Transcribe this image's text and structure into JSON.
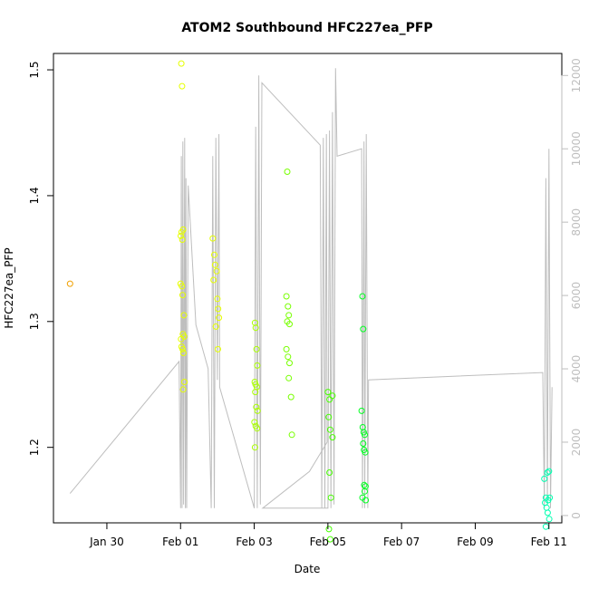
{
  "chart_data": {
    "type": "scatter",
    "title": "ATOM2 Southbound HFC227ea_PFP",
    "xlabel": "Date",
    "ylabel": "HFC227ea_PFP",
    "x_axis": {
      "type": "date",
      "range": [
        "2017-01-28T13:12",
        "2017-02-11T08:24"
      ],
      "ticks": [
        "2017-01-30",
        "2017-02-01",
        "2017-02-03",
        "2017-02-05",
        "2017-02-07",
        "2017-02-09",
        "2017-02-11"
      ],
      "tick_labels": [
        "Jan 30",
        "Feb 01",
        "Feb 03",
        "Feb 05",
        "Feb 07",
        "Feb 09",
        "Feb 11"
      ]
    },
    "y_axis": {
      "range": [
        1.14,
        1.513
      ],
      "ticks": [
        1.2,
        1.3,
        1.4,
        1.5
      ],
      "tick_labels": [
        "1.2",
        "1.3",
        "1.4",
        "1.5"
      ]
    },
    "y2_axis": {
      "color": "#bebebe",
      "range": [
        -200,
        12600
      ],
      "ticks": [
        0,
        2000,
        4000,
        6000,
        8000,
        10000,
        12000
      ],
      "tick_labels": [
        "0",
        "2000",
        "4000",
        "6000",
        "8000",
        "10000",
        "12000"
      ]
    },
    "grid": false,
    "legend": "none",
    "marker": "open-circle",
    "line_series": {
      "color": "#bebebe",
      "points": [
        [
          "2017-01-29T00:00",
          600
        ],
        [
          "2017-01-31T23:00",
          4200
        ],
        [
          "2017-02-01T00:00",
          200
        ],
        [
          "2017-02-01T00:30",
          9800
        ],
        [
          "2017-02-01T01:00",
          200
        ],
        [
          "2017-02-01T01:30",
          10200
        ],
        [
          "2017-02-01T02:00",
          300
        ],
        [
          "2017-02-01T02:40",
          10300
        ],
        [
          "2017-02-01T03:10",
          200
        ],
        [
          "2017-02-01T03:30",
          9200
        ],
        [
          "2017-02-01T04:00",
          200
        ],
        [
          "2017-02-01T05:00",
          9000
        ],
        [
          "2017-02-01T10:00",
          5200
        ],
        [
          "2017-02-01T18:00",
          4000
        ],
        [
          "2017-02-01T20:00",
          200
        ],
        [
          "2017-02-01T21:00",
          9800
        ],
        [
          "2017-02-01T22:00",
          200
        ],
        [
          "2017-02-01T23:00",
          10300
        ],
        [
          "2017-02-02T00:00",
          3700
        ],
        [
          "2017-02-02T01:00",
          10400
        ],
        [
          "2017-02-02T01:30",
          3500
        ],
        [
          "2017-02-03T00:00",
          200
        ],
        [
          "2017-02-03T01:00",
          10600
        ],
        [
          "2017-02-03T02:00",
          200
        ],
        [
          "2017-02-03T03:00",
          12000
        ],
        [
          "2017-02-03T04:00",
          300
        ],
        [
          "2017-02-03T05:00",
          11800
        ],
        [
          "2017-02-04T19:00",
          10100
        ],
        [
          "2017-02-04T20:00",
          200
        ],
        [
          "2017-02-04T21:00",
          10300
        ],
        [
          "2017-02-04T22:00",
          200
        ],
        [
          "2017-02-04T23:00",
          10400
        ],
        [
          "2017-02-04T23:30",
          2000
        ],
        [
          "2017-02-04T12:00",
          1200
        ],
        [
          "2017-02-03T05:30",
          200
        ],
        [
          "2017-02-05T00:00",
          200
        ],
        [
          "2017-02-05T01:00",
          10500
        ],
        [
          "2017-02-05T02:00",
          200
        ],
        [
          "2017-02-05T03:00",
          11000
        ],
        [
          "2017-02-05T04:00",
          300
        ],
        [
          "2017-02-05T05:00",
          12200
        ],
        [
          "2017-02-05T06:00",
          9800
        ],
        [
          "2017-02-05T22:00",
          10000
        ],
        [
          "2017-02-05T22:30",
          200
        ],
        [
          "2017-02-05T23:30",
          10200
        ],
        [
          "2017-02-06T00:00",
          200
        ],
        [
          "2017-02-06T01:00",
          10400
        ],
        [
          "2017-02-06T02:00",
          200
        ],
        [
          "2017-02-06T02:30",
          3700
        ],
        [
          "2017-02-10T20:00",
          3900
        ],
        [
          "2017-02-10T21:00",
          200
        ],
        [
          "2017-02-10T22:00",
          9200
        ],
        [
          "2017-02-10T23:00",
          300
        ],
        [
          "2017-02-11T00:00",
          10000
        ],
        [
          "2017-02-11T01:00",
          200
        ],
        [
          "2017-02-11T02:00",
          3500
        ]
      ]
    },
    "series": [
      {
        "color": "#f0a000",
        "points": [
          [
            "2017-01-29T00:00",
            1.33
          ]
        ]
      },
      {
        "color": "#e6ff00",
        "points": [
          [
            "2017-02-01T00:30",
            1.505
          ],
          [
            "2017-02-01T01:00",
            1.487
          ],
          [
            "2017-02-01T00:10",
            1.368
          ],
          [
            "2017-02-01T00:40",
            1.371
          ],
          [
            "2017-02-01T01:10",
            1.365
          ],
          [
            "2017-02-01T01:40",
            1.373
          ],
          [
            "2017-02-01T00:00",
            1.33
          ],
          [
            "2017-02-01T00:50",
            1.328
          ],
          [
            "2017-02-01T01:20",
            1.321
          ],
          [
            "2017-02-01T02:10",
            1.305
          ],
          [
            "2017-02-01T00:20",
            1.286
          ],
          [
            "2017-02-01T01:30",
            1.29
          ],
          [
            "2017-02-01T02:20",
            1.288
          ],
          [
            "2017-02-01T00:40",
            1.28
          ],
          [
            "2017-02-01T01:20",
            1.278
          ],
          [
            "2017-02-01T01:50",
            1.275
          ],
          [
            "2017-02-01T02:30",
            1.252
          ],
          [
            "2017-02-01T01:40",
            1.246
          ],
          [
            "2017-02-01T21:00",
            1.366
          ],
          [
            "2017-02-01T22:00",
            1.353
          ],
          [
            "2017-02-01T22:30",
            1.345
          ],
          [
            "2017-02-01T23:30",
            1.34
          ],
          [
            "2017-02-01T21:30",
            1.333
          ],
          [
            "2017-02-02T00:00",
            1.318
          ],
          [
            "2017-02-02T00:30",
            1.31
          ],
          [
            "2017-02-02T01:00",
            1.303
          ],
          [
            "2017-02-01T23:00",
            1.296
          ],
          [
            "2017-02-02T00:20",
            1.278
          ]
        ]
      },
      {
        "color": "#aaff00",
        "points": [
          [
            "2017-02-03T00:30",
            1.299
          ],
          [
            "2017-02-03T01:00",
            1.295
          ],
          [
            "2017-02-03T01:30",
            1.278
          ],
          [
            "2017-02-03T02:00",
            1.265
          ],
          [
            "2017-02-03T00:20",
            1.252
          ],
          [
            "2017-02-03T00:50",
            1.25
          ],
          [
            "2017-02-03T01:40",
            1.248
          ],
          [
            "2017-02-03T00:40",
            1.244
          ],
          [
            "2017-02-03T01:20",
            1.232
          ],
          [
            "2017-02-03T02:10",
            1.229
          ],
          [
            "2017-02-03T00:10",
            1.22
          ],
          [
            "2017-02-03T01:00",
            1.217
          ],
          [
            "2017-02-03T01:50",
            1.215
          ],
          [
            "2017-02-03T00:30",
            1.2
          ]
        ]
      },
      {
        "color": "#78ff00",
        "points": [
          [
            "2017-02-03T21:30",
            1.419
          ],
          [
            "2017-02-03T21:00",
            1.32
          ],
          [
            "2017-02-03T22:00",
            1.312
          ],
          [
            "2017-02-03T22:30",
            1.305
          ],
          [
            "2017-02-03T21:30",
            1.3
          ],
          [
            "2017-02-03T23:00",
            1.298
          ],
          [
            "2017-02-03T21:00",
            1.278
          ],
          [
            "2017-02-03T22:00",
            1.272
          ],
          [
            "2017-02-03T23:00",
            1.267
          ],
          [
            "2017-02-03T22:30",
            1.255
          ],
          [
            "2017-02-04T00:00",
            1.24
          ],
          [
            "2017-02-04T00:30",
            1.21
          ]
        ]
      },
      {
        "color": "#46ff00",
        "points": [
          [
            "2017-02-05T00:00",
            1.244
          ],
          [
            "2017-02-05T01:00",
            1.238
          ],
          [
            "2017-02-05T03:00",
            1.241
          ],
          [
            "2017-02-05T00:30",
            1.224
          ],
          [
            "2017-02-05T01:30",
            1.214
          ],
          [
            "2017-02-05T03:00",
            1.208
          ],
          [
            "2017-02-05T01:00",
            1.18
          ],
          [
            "2017-02-05T02:00",
            1.16
          ],
          [
            "2017-02-05T00:40",
            1.135
          ],
          [
            "2017-02-05T01:30",
            1.127
          ]
        ]
      },
      {
        "color": "#00ff20",
        "points": [
          [
            "2017-02-05T22:30",
            1.32
          ],
          [
            "2017-02-05T23:00",
            1.294
          ],
          [
            "2017-02-05T22:00",
            1.229
          ],
          [
            "2017-02-05T22:40",
            1.216
          ],
          [
            "2017-02-05T23:20",
            1.212
          ],
          [
            "2017-02-06T00:00",
            1.21
          ],
          [
            "2017-02-05T23:00",
            1.203
          ],
          [
            "2017-02-05T23:30",
            1.198
          ],
          [
            "2017-02-06T00:20",
            1.196
          ],
          [
            "2017-02-05T23:40",
            1.17
          ],
          [
            "2017-02-06T00:30",
            1.169
          ],
          [
            "2017-02-05T22:30",
            1.16
          ],
          [
            "2017-02-06T00:00",
            1.165
          ],
          [
            "2017-02-06T00:40",
            1.158
          ]
        ]
      },
      {
        "color": "#00ffb0",
        "points": [
          [
            "2017-02-10T21:00",
            1.175
          ],
          [
            "2017-02-10T23:00",
            1.18
          ],
          [
            "2017-02-11T00:00",
            1.181
          ],
          [
            "2017-02-10T22:00",
            1.16
          ],
          [
            "2017-02-10T23:30",
            1.158
          ],
          [
            "2017-02-11T00:30",
            1.16
          ],
          [
            "2017-02-10T21:30",
            1.156
          ],
          [
            "2017-02-10T22:30",
            1.152
          ],
          [
            "2017-02-10T23:10",
            1.148
          ],
          [
            "2017-02-11T00:10",
            1.143
          ],
          [
            "2017-02-10T22:00",
            1.137
          ]
        ]
      }
    ]
  }
}
